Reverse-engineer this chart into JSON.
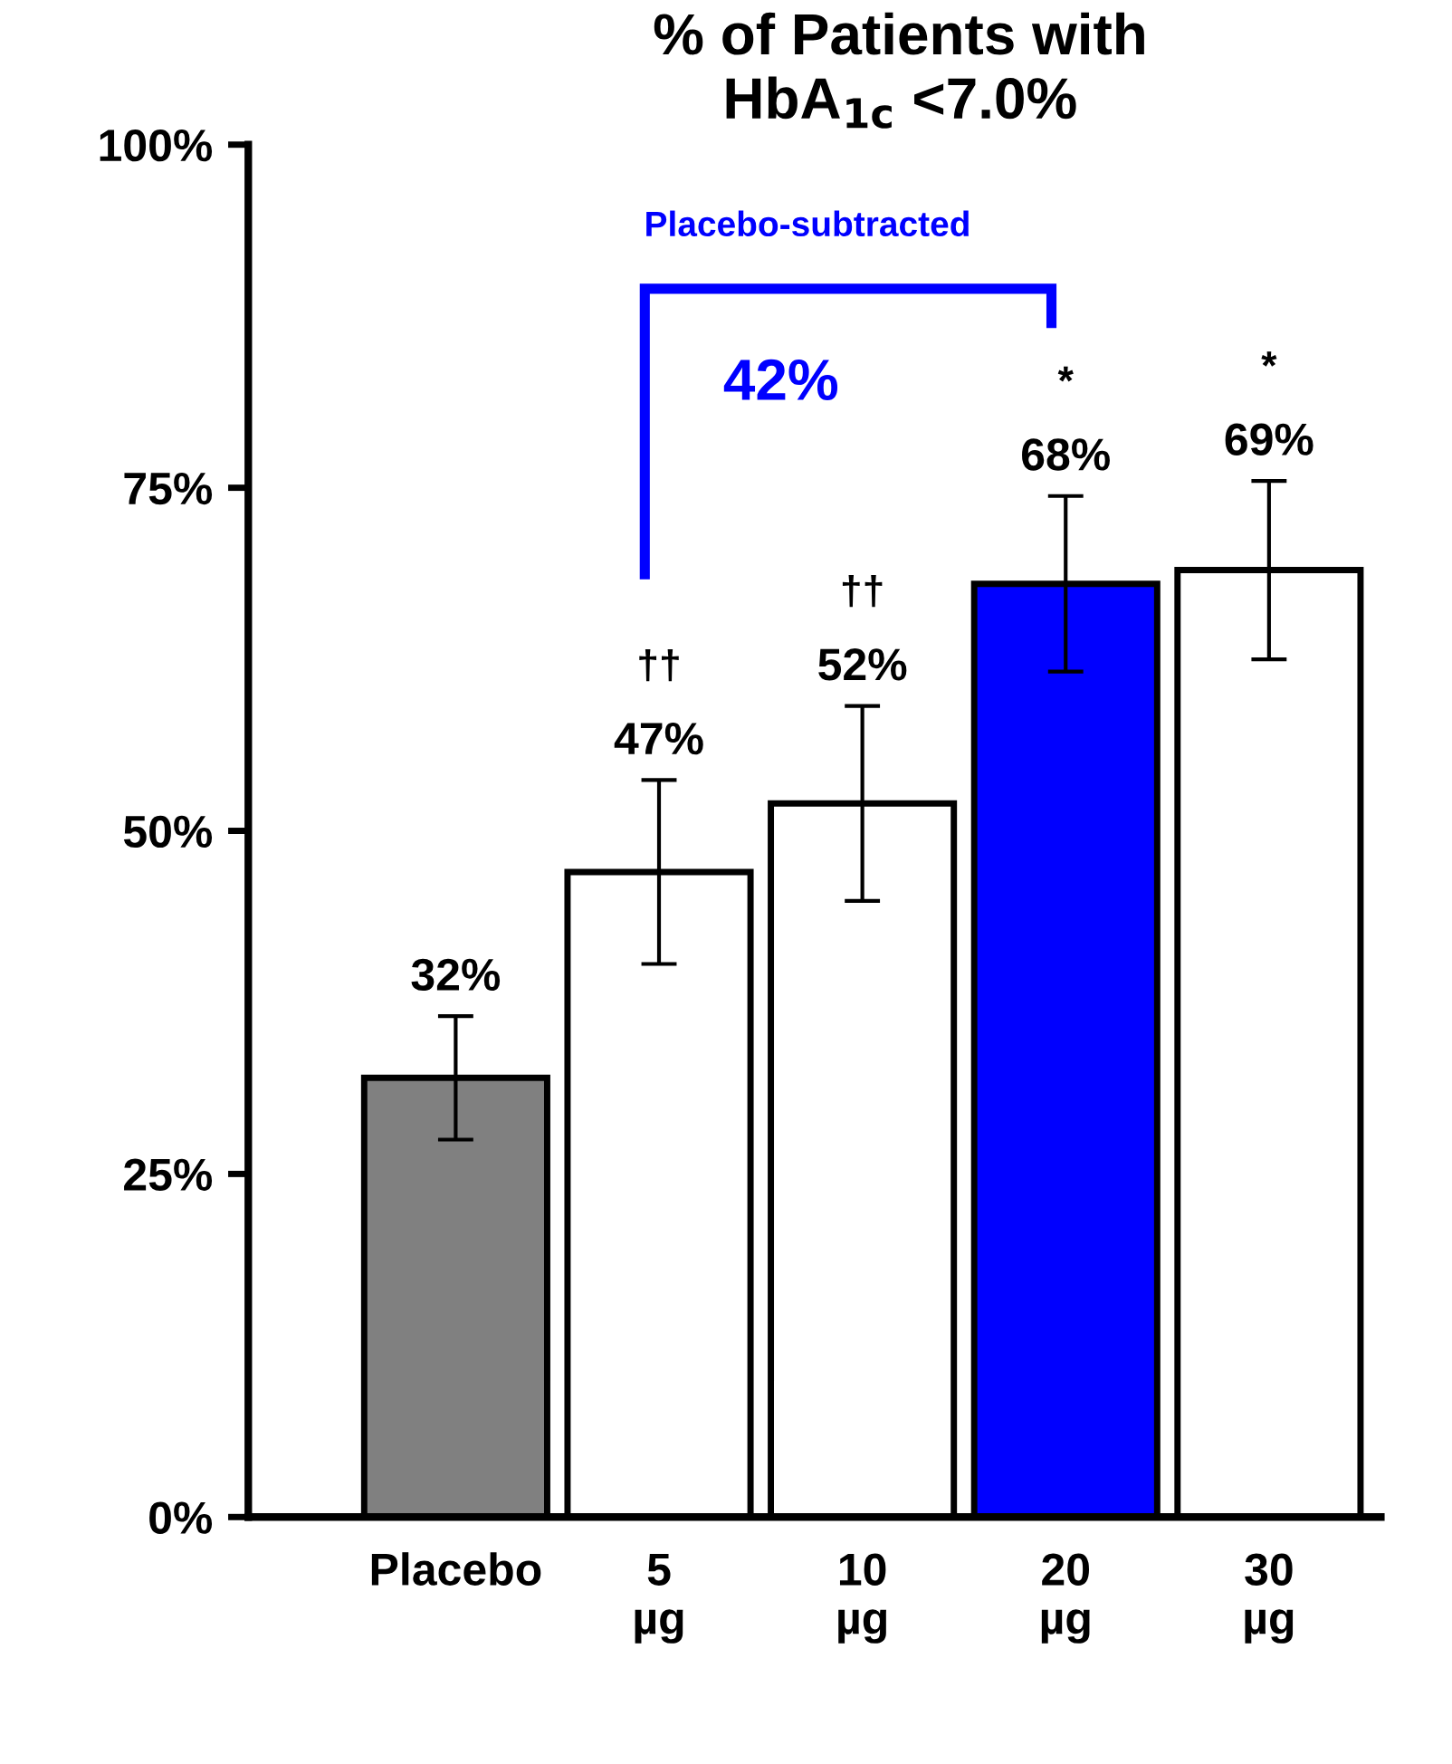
{
  "chart_data": {
    "type": "bar",
    "title": "% of Patients with\nHbA$_{1c}$ <7.0%",
    "categories": [
      "Placebo",
      "5\nµg",
      "10\nµg",
      "20\nµg",
      "30\nµg"
    ],
    "values": [
      32,
      47,
      52,
      68,
      69
    ],
    "colors": [
      "#808080",
      "#ffffff",
      "#ffffff",
      "#0000ff",
      "#ffffff"
    ],
    "errors": [
      4.5,
      6.7,
      7.1,
      6.4,
      6.5
    ],
    "value_labels": [
      "32%",
      "47%",
      "52%",
      "68%",
      "69%"
    ],
    "ylim": [
      0,
      100
    ],
    "yticks": [
      {
        "value": 0,
        "label": "0%"
      },
      {
        "value": 25,
        "label": "25%"
      },
      {
        "value": 50,
        "label": "50%"
      },
      {
        "value": 75,
        "label": "75%"
      },
      {
        "value": 100,
        "label": "100%"
      }
    ],
    "annotations": [
      "††",
      "††",
      "*",
      "*",
      "42%",
      "Placebo-subtracted"
    ],
    "grid": false,
    "legend": false
  }
}
